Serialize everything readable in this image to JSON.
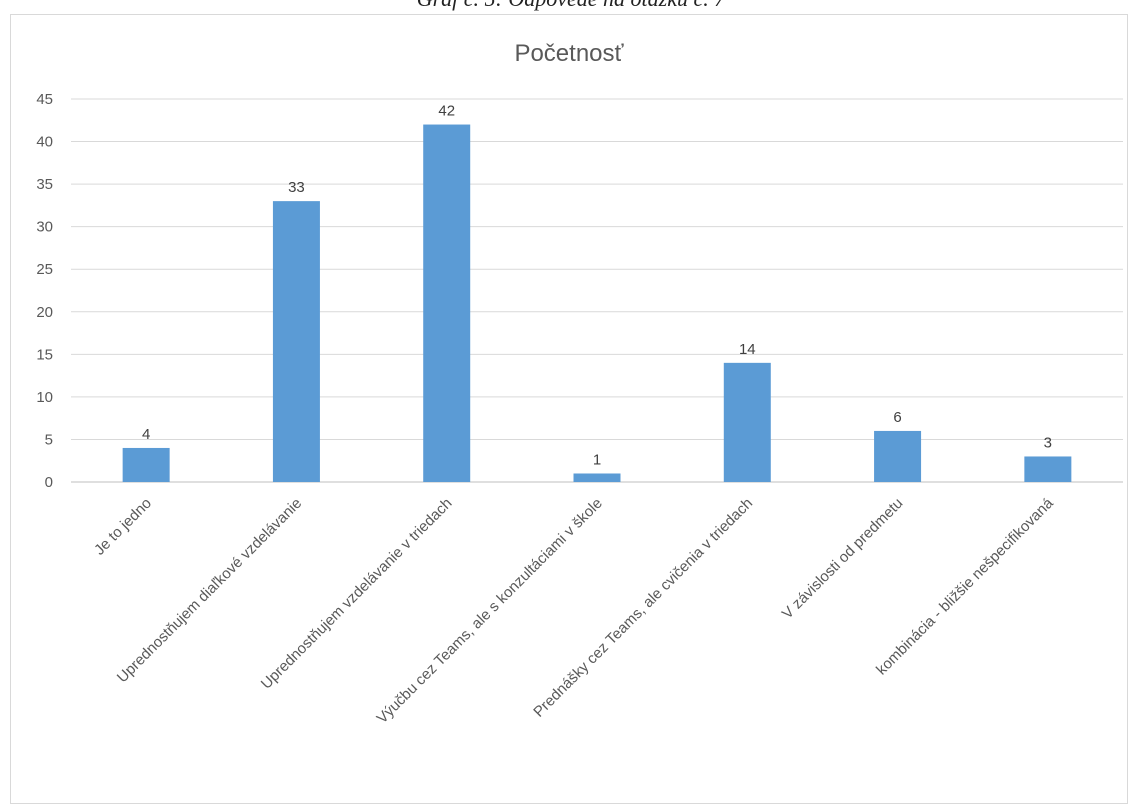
{
  "caption": "Graf č. 5: Odpovede na otázku č. 7",
  "chart_data": {
    "type": "bar",
    "title": "Početnosť",
    "categories": [
      "Je to jedno",
      "Uprednostňujem diaľkové vzdelávanie",
      "Uprednostňujem vzdelávanie v triedach",
      "Výučbu cez Teams, ale s konzultáciami v škole",
      "Prednášky cez Teams, ale cvičenia v triedach",
      "V závislosti od predmetu",
      "kombinácia - bližšie nešpecifikovaná"
    ],
    "values": [
      4,
      33,
      42,
      1,
      14,
      6,
      3
    ],
    "ylim": [
      0,
      45
    ],
    "yticks": [
      0,
      5,
      10,
      15,
      20,
      25,
      30,
      35,
      40,
      45
    ],
    "xlabel": "",
    "ylabel": "",
    "grid": true,
    "bar_color": "#5b9bd5",
    "data_labels": true
  }
}
